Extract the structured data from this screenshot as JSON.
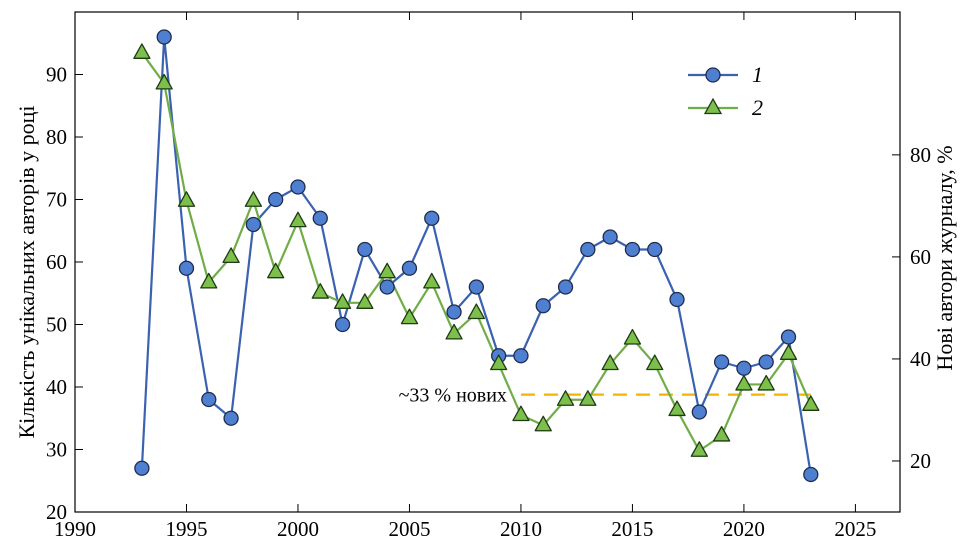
{
  "chart_data": {
    "type": "line",
    "xlabel": "",
    "ylabel": "Кількість унікальних авторів у році",
    "y2label": "Нові автори журналу, %",
    "xlim": [
      1990,
      2027
    ],
    "ylim": [
      20,
      100
    ],
    "y2lim": [
      10,
      108
    ],
    "xticks": [
      1990,
      1995,
      2000,
      2005,
      2010,
      2015,
      2020,
      2025
    ],
    "yticks": [
      20,
      30,
      40,
      50,
      60,
      70,
      80,
      90
    ],
    "y2ticks": [
      20,
      40,
      60,
      80
    ],
    "grid": false,
    "legend_position": "top-right",
    "colors": {
      "series1_line": "#3a62b0",
      "series1_fill": "#4f7fd0",
      "series2_line": "#70ad47",
      "series2_fill": "#7cbf4a",
      "reference_line": "#f2b400"
    },
    "series": [
      {
        "name": "1",
        "axis": "left",
        "marker": "circle",
        "x": [
          1993,
          1994,
          1995,
          1996,
          1997,
          1998,
          1999,
          2000,
          2001,
          2002,
          2003,
          2004,
          2005,
          2006,
          2007,
          2008,
          2009,
          2010,
          2011,
          2012,
          2013,
          2014,
          2015,
          2016,
          2017,
          2018,
          2019,
          2020,
          2021,
          2022,
          2023
        ],
        "values": [
          27,
          96,
          59,
          38,
          35,
          66,
          70,
          72,
          67,
          50,
          62,
          56,
          59,
          67,
          52,
          56,
          45,
          45,
          53,
          56,
          62,
          64,
          62,
          62,
          54,
          36,
          44,
          43,
          44,
          48,
          26
        ]
      },
      {
        "name": "2",
        "axis": "right",
        "marker": "triangle",
        "x": [
          1993,
          1994,
          1995,
          1996,
          1997,
          1998,
          1999,
          2000,
          2001,
          2002,
          2003,
          2004,
          2005,
          2006,
          2007,
          2008,
          2009,
          2010,
          2011,
          2012,
          2013,
          2014,
          2015,
          2016,
          2017,
          2018,
          2019,
          2020,
          2021,
          2022,
          2023
        ],
        "values": [
          100,
          94,
          71,
          55,
          60,
          71,
          57,
          67,
          53,
          51,
          51,
          57,
          48,
          55,
          45,
          49,
          39,
          29,
          27,
          32,
          32,
          39,
          44,
          39,
          30,
          22,
          25,
          35,
          35,
          41,
          31
        ]
      }
    ],
    "reference_line": {
      "axis": "right",
      "value": 33,
      "x_start": 2010,
      "x_end": 2023,
      "label": "~33 % нових"
    }
  }
}
